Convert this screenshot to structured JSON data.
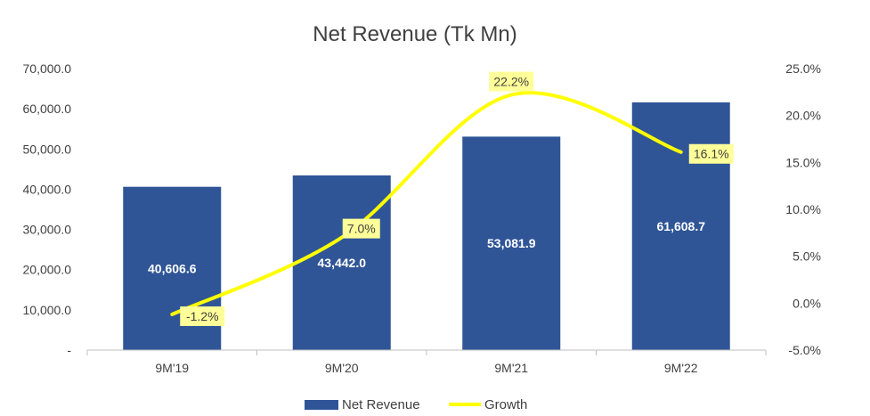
{
  "chart_data": {
    "type": "bar",
    "title": "Net Revenue (Tk Mn)",
    "categories": [
      "9M'19",
      "9M'20",
      "9M'21",
      "9M'22"
    ],
    "series": [
      {
        "name": "Net Revenue",
        "type": "bar",
        "axis": "left",
        "values": [
          40606.6,
          43442.0,
          53081.9,
          61608.7
        ],
        "labels": [
          "40,606.6",
          "43,442.0",
          "53,081.9",
          "61,608.7"
        ],
        "color": "#2F5597"
      },
      {
        "name": "Growth",
        "type": "line",
        "axis": "right",
        "values": [
          -1.2,
          7.0,
          22.2,
          16.1
        ],
        "labels": [
          "-1.2%",
          "7.0%",
          "22.2%",
          "16.1%"
        ],
        "color": "#FFFF00"
      }
    ],
    "y_left": {
      "ylim": [
        0,
        70000
      ],
      "ticks": [
        0,
        10000,
        20000,
        30000,
        40000,
        50000,
        60000,
        70000
      ],
      "tick_labels": [
        "-",
        "10,000.0",
        "20,000.0",
        "30,000.0",
        "40,000.0",
        "50,000.0",
        "60,000.0",
        "70,000.0"
      ]
    },
    "y_right": {
      "ylim": [
        -5,
        25
      ],
      "ticks": [
        -5,
        0,
        5,
        10,
        15,
        20,
        25
      ],
      "tick_labels": [
        "-5.0%",
        "0.0%",
        "5.0%",
        "10.0%",
        "15.0%",
        "20.0%",
        "25.0%"
      ]
    },
    "grid": false,
    "legend_position": "bottom",
    "label_box_color": "#FFFF99"
  }
}
